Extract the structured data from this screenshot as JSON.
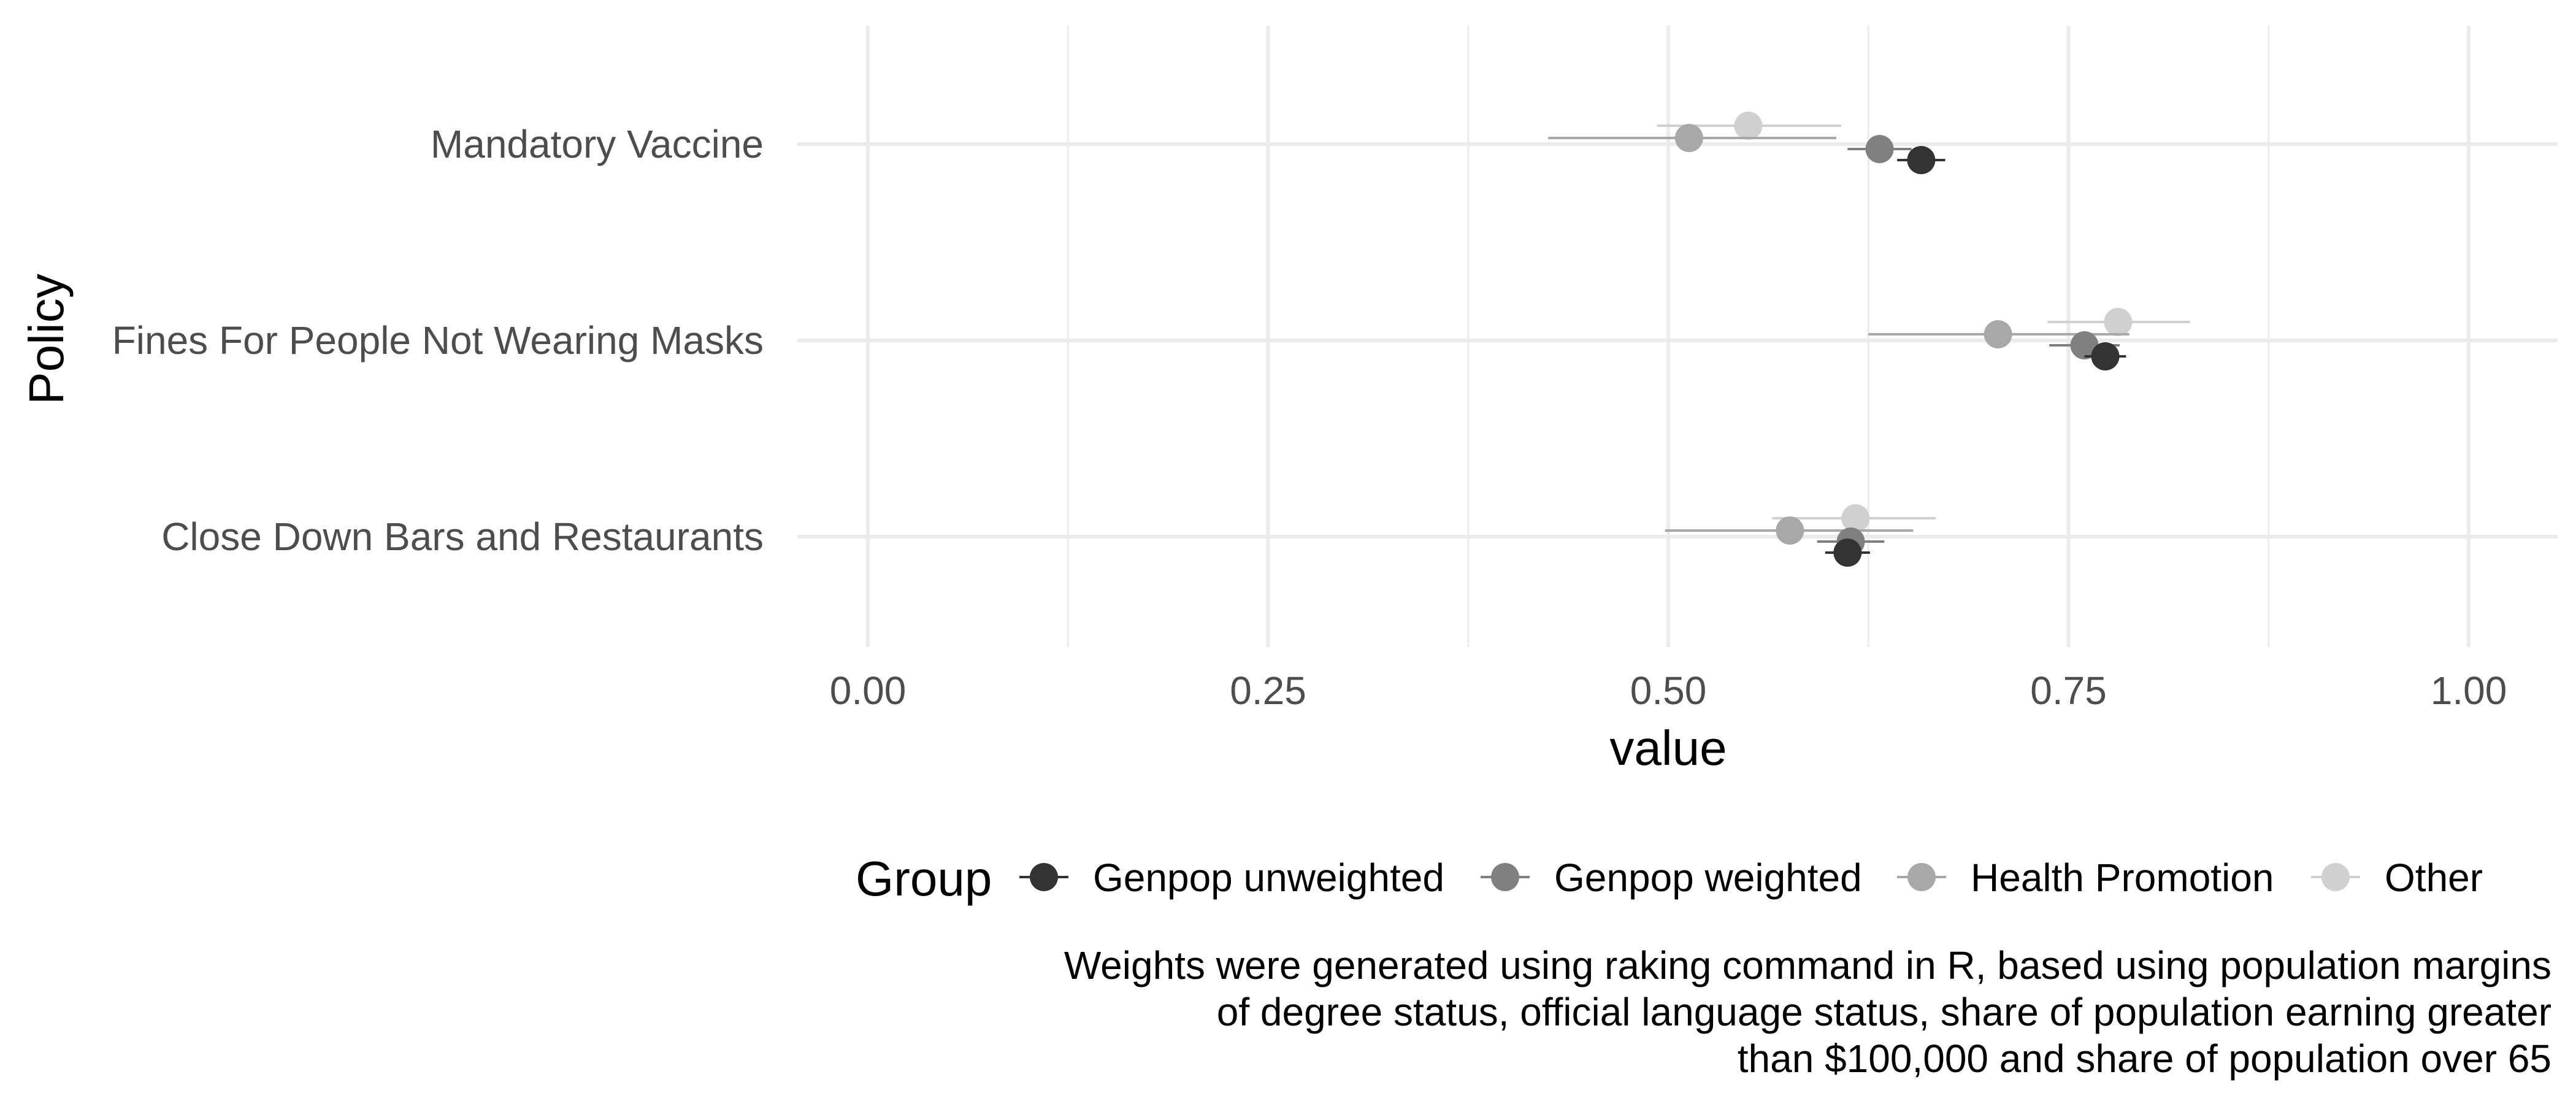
{
  "chart_data": {
    "type": "scatter",
    "xlabel": "value",
    "ylabel": "Policy",
    "xlim": [
      0,
      1
    ],
    "x_ticks": [
      "0.00",
      "0.25",
      "0.50",
      "0.75",
      "1.00"
    ],
    "categories": [
      "Mandatory Vaccine",
      "Fines For People Not Wearing Masks",
      "Close Down Bars and Restaurants"
    ],
    "legend_title": "Group",
    "legend_position": "bottom",
    "grid": true,
    "series": [
      {
        "name": "Genpop unweighted",
        "color": "#333333",
        "values": [
          0.658,
          0.773,
          0.612
        ],
        "lower": [
          0.643,
          0.76,
          0.598
        ],
        "upper": [
          0.673,
          0.786,
          0.626
        ]
      },
      {
        "name": "Genpop weighted",
        "color": "#808080",
        "values": [
          0.632,
          0.76,
          0.614
        ],
        "lower": [
          0.612,
          0.738,
          0.593
        ],
        "upper": [
          0.652,
          0.782,
          0.635
        ]
      },
      {
        "name": "Health Promotion",
        "color": "#a8a8a8",
        "values": [
          0.513,
          0.706,
          0.576
        ],
        "lower": [
          0.425,
          0.625,
          0.498
        ],
        "upper": [
          0.605,
          0.788,
          0.653
        ]
      },
      {
        "name": "Other",
        "color": "#d0d0d0",
        "values": [
          0.55,
          0.781,
          0.617
        ],
        "lower": [
          0.493,
          0.737,
          0.565
        ],
        "upper": [
          0.608,
          0.826,
          0.667
        ]
      }
    ],
    "caption": [
      "Weights were generated using raking command in R, based using population margins",
      "of degree status, official language status, share of population earning greater",
      "than $100,000 and share of population over 65"
    ]
  }
}
